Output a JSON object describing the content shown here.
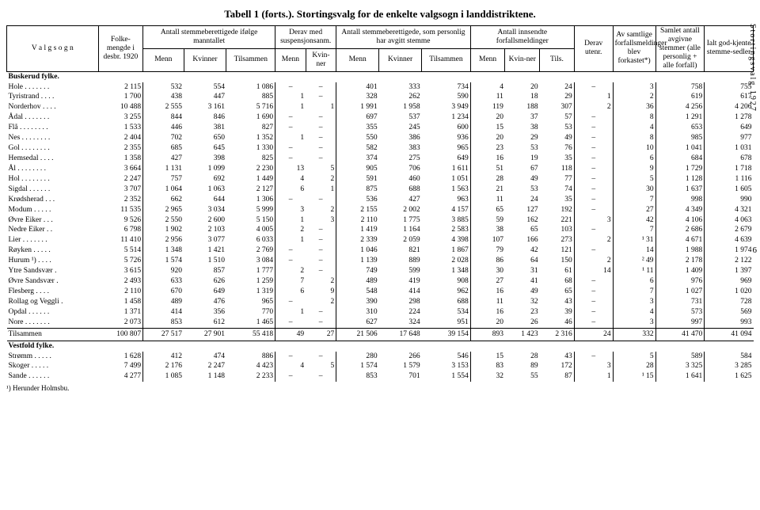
{
  "title": "Tabell 1 (forts.).  Stortingsvalg for de enkelte valgsogn i landdistriktene.",
  "side_label": "Stortingsvalg 1927",
  "page_num": "6",
  "footnote": "¹) Herunder Holmsbu.",
  "headers": {
    "c1": "V a l g s o g n",
    "c2": "Folke-mengde i desbr. 1920",
    "g3": "Antall stemmeberettigede ifølge manntallet",
    "c3a": "Menn",
    "c3b": "Kvinner",
    "c3c": "Tilsammen",
    "g4": "Derav med suspensjonsanm.",
    "c4a": "Menn",
    "c4b": "Kvin-ner",
    "g5": "Antall stemmeberettigede, som personlig har avgitt stemme",
    "c5a": "Menn",
    "c5b": "Kvinner",
    "c5c": "Tilsammen",
    "g6": "Antall innsendte forfallsmeldinger",
    "c6a": "Menn",
    "c6b": "Kvin-ner",
    "c6c": "Tils.",
    "c7": "Av samtlige forfallsmeldinger blev forkastet*)",
    "c8": "Derav utenr.",
    "c9": "Samlet antall avgivne stemmer (alle personlig + alle forfall)",
    "c10": "Ialt god-kjente stemme-sedler"
  },
  "sections": [
    {
      "title": "Buskerud fylke.",
      "rows": [
        {
          "n": "Hole . . . . . . .",
          "v": [
            "2 115",
            "532",
            "554",
            "1 086",
            "–",
            "–",
            "401",
            "333",
            "734",
            "4",
            "20",
            "24",
            "–",
            "3",
            "758",
            "755"
          ]
        },
        {
          "n": "Tyristrand . . . .",
          "v": [
            "1 700",
            "438",
            "447",
            "885",
            "1",
            "–",
            "328",
            "262",
            "590",
            "11",
            "18",
            "29",
            "1",
            "2",
            "619",
            "617"
          ]
        },
        {
          "n": "Norderhov . . . .",
          "v": [
            "10 488",
            "2 555",
            "3 161",
            "5 716",
            "1",
            "1",
            "1 991",
            "1 958",
            "3 949",
            "119",
            "188",
            "307",
            "2",
            "36",
            "4 256",
            "4 206"
          ]
        },
        {
          "n": "Ådal . . . . . . .",
          "v": [
            "3 255",
            "844",
            "846",
            "1 690",
            "–",
            "–",
            "697",
            "537",
            "1 234",
            "20",
            "37",
            "57",
            "–",
            "8",
            "1 291",
            "1 278"
          ]
        },
        {
          "n": "Flå . . . . . . . .",
          "v": [
            "1 533",
            "446",
            "381",
            "827",
            "–",
            "–",
            "355",
            "245",
            "600",
            "15",
            "38",
            "53",
            "–",
            "4",
            "653",
            "649"
          ]
        },
        {
          "n": "Nes . . . . . . . .",
          "v": [
            "2 404",
            "702",
            "650",
            "1 352",
            "1",
            "–",
            "550",
            "386",
            "936",
            "20",
            "29",
            "49",
            "–",
            "8",
            "985",
            "977"
          ]
        },
        {
          "n": "Gol . . . . . . . .",
          "v": [
            "2 355",
            "685",
            "645",
            "1 330",
            "–",
            "–",
            "582",
            "383",
            "965",
            "23",
            "53",
            "76",
            "–",
            "10",
            "1 041",
            "1 031"
          ]
        },
        {
          "n": "Hemsedal . . . .",
          "v": [
            "1 358",
            "427",
            "398",
            "825",
            "–",
            "–",
            "374",
            "275",
            "649",
            "16",
            "19",
            "35",
            "–",
            "6",
            "684",
            "678"
          ]
        },
        {
          "n": "Ål . . . . . . . .",
          "v": [
            "3 664",
            "1 131",
            "1 099",
            "2 230",
            "13",
            "5",
            "905",
            "706",
            "1 611",
            "51",
            "67",
            "118",
            "–",
            "9",
            "1 729",
            "1 718"
          ]
        },
        {
          "n": "Hol . . . . . . . .",
          "v": [
            "2 247",
            "757",
            "692",
            "1 449",
            "4",
            "2",
            "591",
            "460",
            "1 051",
            "28",
            "49",
            "77",
            "–",
            "5",
            "1 128",
            "1 116"
          ]
        },
        {
          "n": "Sigdal . . . . . .",
          "v": [
            "3 707",
            "1 064",
            "1 063",
            "2 127",
            "6",
            "1",
            "875",
            "688",
            "1 563",
            "21",
            "53",
            "74",
            "–",
            "30",
            "1 637",
            "1 605"
          ]
        },
        {
          "n": "Krødsherad . . .",
          "v": [
            "2 352",
            "662",
            "644",
            "1 306",
            "–",
            "–",
            "536",
            "427",
            "963",
            "11",
            "24",
            "35",
            "–",
            "7",
            "998",
            "990"
          ]
        },
        {
          "n": "Modum . . . . .",
          "v": [
            "11 535",
            "2 965",
            "3 034",
            "5 999",
            "3",
            "2",
            "2 155",
            "2 002",
            "4 157",
            "65",
            "127",
            "192",
            "–",
            "27",
            "4 349",
            "4 321"
          ]
        },
        {
          "n": "Øvre Eiker . . .",
          "v": [
            "9 526",
            "2 550",
            "2 600",
            "5 150",
            "1",
            "3",
            "2 110",
            "1 775",
            "3 885",
            "59",
            "162",
            "221",
            "3",
            "42",
            "4 106",
            "4 063"
          ]
        },
        {
          "n": "Nedre Eiker . .",
          "v": [
            "6 798",
            "1 902",
            "2 103",
            "4 005",
            "2",
            "–",
            "1 419",
            "1 164",
            "2 583",
            "38",
            "65",
            "103",
            "–",
            "7",
            "2 686",
            "2 679"
          ]
        },
        {
          "n": "Lier . . . . . . .",
          "v": [
            "11 410",
            "2 956",
            "3 077",
            "6 033",
            "1",
            "–",
            "2 339",
            "2 059",
            "4 398",
            "107",
            "166",
            "273",
            "2",
            "¹ 31",
            "4 671",
            "4 639"
          ]
        },
        {
          "n": "Røyken . . . . .",
          "v": [
            "5 514",
            "1 348",
            "1 421",
            "2 769",
            "–",
            "–",
            "1 046",
            "821",
            "1 867",
            "79",
            "42",
            "121",
            "–",
            "14",
            "1 988",
            "1 974"
          ]
        },
        {
          "n": "Hurum ¹) . . . .",
          "v": [
            "5 726",
            "1 574",
            "1 510",
            "3 084",
            "–",
            "–",
            "1 139",
            "889",
            "2 028",
            "86",
            "64",
            "150",
            "2",
            "² 49",
            "2 178",
            "2 122"
          ]
        },
        {
          "n": "Ytre Sandsvær .",
          "v": [
            "3 615",
            "920",
            "857",
            "1 777",
            "2",
            "–",
            "749",
            "599",
            "1 348",
            "30",
            "31",
            "61",
            "14",
            "¹ 11",
            "1 409",
            "1 397"
          ]
        },
        {
          "n": "Øvre Sandsvær .",
          "v": [
            "2 493",
            "633",
            "626",
            "1 259",
            "7",
            "2",
            "489",
            "419",
            "908",
            "27",
            "41",
            "68",
            "–",
            "6",
            "976",
            "969"
          ]
        },
        {
          "n": "Flesberg . . . .",
          "v": [
            "2 110",
            "670",
            "649",
            "1 319",
            "6",
            "9",
            "548",
            "414",
            "962",
            "16",
            "49",
            "65",
            "–",
            "7",
            "1 027",
            "1 020"
          ]
        },
        {
          "n": "Rollag og Veggli .",
          "v": [
            "1 458",
            "489",
            "476",
            "965",
            "–",
            "2",
            "390",
            "298",
            "688",
            "11",
            "32",
            "43",
            "–",
            "3",
            "731",
            "728"
          ]
        },
        {
          "n": "Opdal . . . . . .",
          "v": [
            "1 371",
            "414",
            "356",
            "770",
            "1",
            "–",
            "310",
            "224",
            "534",
            "16",
            "23",
            "39",
            "–",
            "4",
            "573",
            "569"
          ]
        },
        {
          "n": "Nore . . . . . . .",
          "v": [
            "2 073",
            "853",
            "612",
            "1 465",
            "–",
            "–",
            "627",
            "324",
            "951",
            "20",
            "26",
            "46",
            "–",
            "3",
            "997",
            "993"
          ]
        }
      ],
      "total": {
        "n": "Tilsammen",
        "v": [
          "100 807",
          "27 517",
          "27 901",
          "55 418",
          "49",
          "27",
          "21 506",
          "17 648",
          "39 154",
          "893",
          "1 423",
          "2 316",
          "24",
          "332",
          "41 470",
          "41 094"
        ]
      }
    },
    {
      "title": "Vestfold fylke.",
      "rows": [
        {
          "n": "Strømm . . . . .",
          "v": [
            "1 628",
            "412",
            "474",
            "886",
            "–",
            "–",
            "280",
            "266",
            "546",
            "15",
            "28",
            "43",
            "–",
            "5",
            "589",
            "584"
          ]
        },
        {
          "n": "Skoger . . . . .",
          "v": [
            "7 499",
            "2 176",
            "2 247",
            "4 423",
            "4",
            "5",
            "1 574",
            "1 579",
            "3 153",
            "83",
            "89",
            "172",
            "3",
            "28",
            "3 325",
            "3 285"
          ]
        },
        {
          "n": "Sande . . . . . .",
          "v": [
            "4 277",
            "1 085",
            "1 148",
            "2 233",
            "–",
            "–",
            "853",
            "701",
            "1 554",
            "32",
            "55",
            "87",
            "1",
            "¹ 15",
            "1 641",
            "1 625"
          ]
        }
      ]
    }
  ]
}
